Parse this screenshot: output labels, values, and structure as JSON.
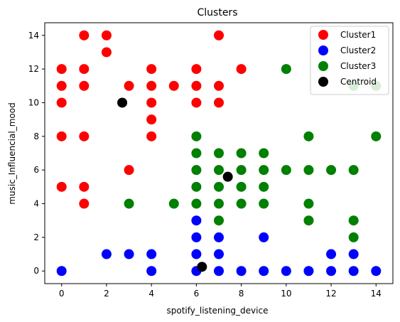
{
  "chart_data": {
    "type": "scatter",
    "title": "Clusters",
    "xlabel": "spotify_listening_device",
    "ylabel": "music_Influencial_mood",
    "xlim": [
      -0.75,
      14.75
    ],
    "ylim": [
      -0.75,
      14.75
    ],
    "xticks": [
      0,
      2,
      4,
      6,
      8,
      10,
      12,
      14
    ],
    "yticks": [
      0,
      2,
      4,
      6,
      8,
      10,
      12,
      14
    ],
    "grid": false,
    "legend_position": "top-right",
    "series": [
      {
        "name": "Cluster1",
        "color": "#ff0000",
        "points": [
          [
            0,
            12
          ],
          [
            0,
            11
          ],
          [
            0,
            10
          ],
          [
            0,
            8
          ],
          [
            0,
            5
          ],
          [
            1,
            14
          ],
          [
            1,
            12
          ],
          [
            1,
            11
          ],
          [
            1,
            8
          ],
          [
            1,
            5
          ],
          [
            1,
            4
          ],
          [
            2,
            14
          ],
          [
            2,
            13
          ],
          [
            3,
            11
          ],
          [
            3,
            6
          ],
          [
            4,
            12
          ],
          [
            4,
            11
          ],
          [
            4,
            10
          ],
          [
            4,
            9
          ],
          [
            4,
            8
          ],
          [
            5,
            11
          ],
          [
            6,
            12
          ],
          [
            6,
            11
          ],
          [
            6,
            10
          ],
          [
            7,
            14
          ],
          [
            7,
            11
          ],
          [
            7,
            10
          ],
          [
            8,
            12
          ]
        ]
      },
      {
        "name": "Cluster2",
        "color": "#0000ff",
        "points": [
          [
            0,
            0
          ],
          [
            2,
            1
          ],
          [
            3,
            1
          ],
          [
            4,
            1
          ],
          [
            4,
            0
          ],
          [
            6,
            3
          ],
          [
            6,
            2
          ],
          [
            6,
            1
          ],
          [
            6,
            0
          ],
          [
            7,
            2
          ],
          [
            7,
            1
          ],
          [
            7,
            0
          ],
          [
            8,
            0
          ],
          [
            9,
            2
          ],
          [
            9,
            0
          ],
          [
            10,
            0
          ],
          [
            11,
            0
          ],
          [
            12,
            1
          ],
          [
            12,
            0
          ],
          [
            13,
            1
          ],
          [
            13,
            0
          ],
          [
            14,
            0
          ]
        ]
      },
      {
        "name": "Cluster3",
        "color": "#008000",
        "points": [
          [
            3,
            4
          ],
          [
            5,
            4
          ],
          [
            6,
            8
          ],
          [
            6,
            7
          ],
          [
            6,
            6
          ],
          [
            6,
            5
          ],
          [
            6,
            4
          ],
          [
            7,
            7
          ],
          [
            7,
            6
          ],
          [
            7,
            5
          ],
          [
            7,
            4
          ],
          [
            7,
            3
          ],
          [
            8,
            7
          ],
          [
            8,
            6
          ],
          [
            8,
            5
          ],
          [
            8,
            4
          ],
          [
            9,
            7
          ],
          [
            9,
            6
          ],
          [
            9,
            5
          ],
          [
            9,
            4
          ],
          [
            10,
            12
          ],
          [
            10,
            6
          ],
          [
            11,
            8
          ],
          [
            11,
            6
          ],
          [
            11,
            4
          ],
          [
            11,
            3
          ],
          [
            12,
            6
          ],
          [
            13,
            11
          ],
          [
            13,
            6
          ],
          [
            13,
            3
          ],
          [
            13,
            2
          ],
          [
            14,
            11
          ],
          [
            14,
            8
          ]
        ]
      },
      {
        "name": "Centroid",
        "color": "#000000",
        "points": [
          [
            2.7,
            10
          ],
          [
            7.4,
            5.6
          ],
          [
            6.25,
            0.25
          ]
        ]
      }
    ]
  }
}
